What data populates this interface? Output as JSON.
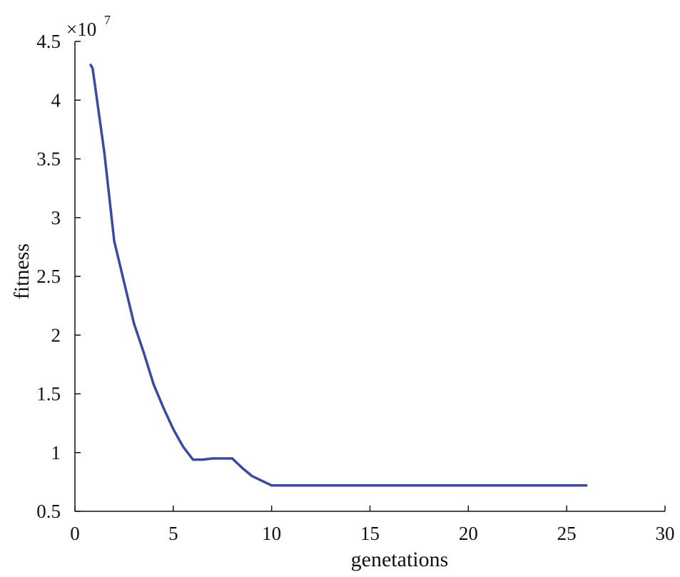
{
  "chart_data": {
    "type": "line",
    "title": "",
    "xlabel": "genetations",
    "ylabel": "fitness",
    "y_multiplier_base": "×10",
    "y_multiplier_exponent": "7",
    "xlim": [
      0,
      30
    ],
    "ylim": [
      0.5,
      4.5
    ],
    "grid": false,
    "xticks": [
      0,
      5,
      10,
      15,
      20,
      25,
      30
    ],
    "xtick_labels": [
      "0",
      "5",
      "10",
      "15",
      "20",
      "25",
      "30"
    ],
    "yticks": [
      0.5,
      1,
      1.5,
      2,
      2.5,
      3,
      3.5,
      4,
      4.5
    ],
    "ytick_labels": [
      "0.5",
      "1",
      "1.5",
      "2",
      "2.5",
      "3",
      "3.5",
      "4",
      "4.5"
    ],
    "line_color": "#3b4aa0",
    "series": [
      {
        "x": [
          0.8,
          0.9,
          1.0,
          1.5,
          2.0,
          2.5,
          3.0,
          3.5,
          4.0,
          4.5,
          5.0,
          5.5,
          6.0,
          6.5,
          7.0,
          7.5,
          8.0,
          8.5,
          9.0,
          9.5,
          10.0,
          12,
          14,
          16,
          18,
          20,
          22,
          24,
          26
        ],
        "y": [
          4.3,
          4.27,
          4.15,
          3.55,
          2.8,
          2.45,
          2.1,
          1.85,
          1.58,
          1.38,
          1.2,
          1.05,
          0.94,
          0.94,
          0.95,
          0.95,
          0.95,
          0.87,
          0.8,
          0.76,
          0.72,
          0.72,
          0.72,
          0.72,
          0.72,
          0.72,
          0.72,
          0.72,
          0.72
        ]
      }
    ]
  }
}
